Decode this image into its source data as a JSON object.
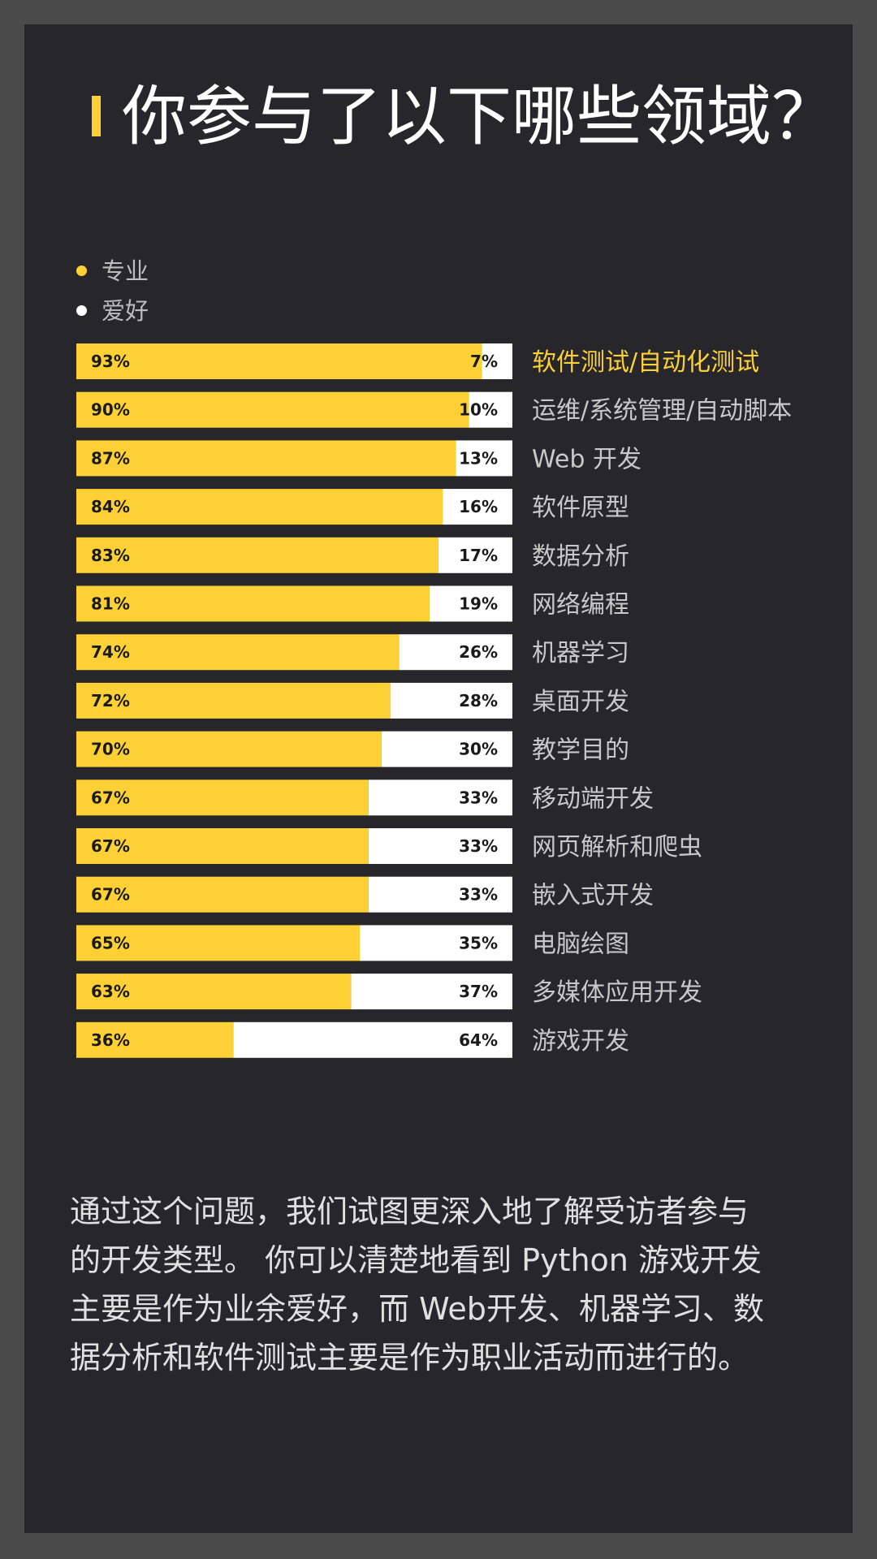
{
  "title": "你参与了以下哪些领域？",
  "colors": {
    "page_background": "#4a4a4a",
    "panel_background": "#27272b",
    "professional": "#fdd135",
    "hobby": "#ffffff",
    "title_text": "#ffffff",
    "category_text": "#c8c8c8",
    "highlight_text": "#fdd135"
  },
  "legend": [
    {
      "label": "专业",
      "color": "#fdd135"
    },
    {
      "label": "爱好",
      "color": "#ffffff"
    }
  ],
  "chart_data": {
    "type": "bar",
    "orientation": "horizontal",
    "stacked": true,
    "percent_stacked": true,
    "legend_position": "top-left",
    "grid": false,
    "categories": [
      "软件测试/自动化测试",
      "运维/系统管理/自动脚本",
      "Web 开发",
      "软件原型",
      "数据分析",
      "网络编程",
      "机器学习",
      "桌面开发",
      "教学目的",
      "移动端开发",
      "网页解析和爬虫",
      "嵌入式开发",
      "电脑绘图",
      "多媒体应用开发",
      "游戏开发"
    ],
    "highlighted_category": "软件测试/自动化测试",
    "series": [
      {
        "name": "专业",
        "values": [
          93,
          90,
          87,
          84,
          83,
          81,
          74,
          72,
          70,
          67,
          67,
          67,
          65,
          63,
          36
        ]
      },
      {
        "name": "爱好",
        "values": [
          7,
          10,
          13,
          16,
          17,
          19,
          26,
          28,
          30,
          33,
          33,
          33,
          35,
          37,
          64
        ]
      }
    ],
    "value_suffix": "%",
    "xlim": [
      0,
      100
    ]
  },
  "description_lines": [
    "通过这个问题，我们试图更深入地了解受访者参与",
    "的开发类型。 你可以清楚地看到 Python 游戏开发",
    "主要是作为业余爱好，而 Web开发、机器学习、数",
    "据分析和软件测试主要是作为职业活动而进行的。"
  ]
}
